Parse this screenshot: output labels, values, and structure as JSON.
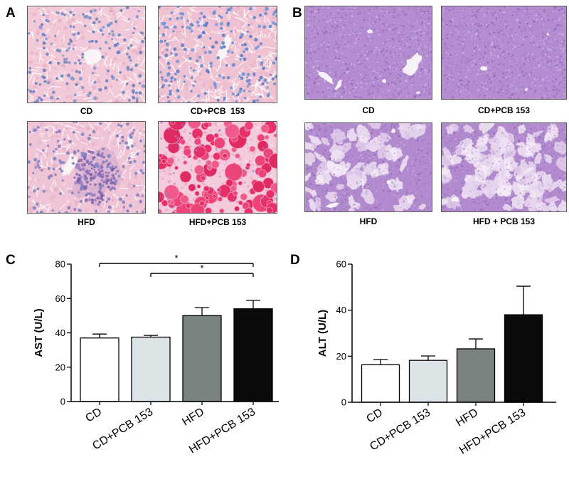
{
  "panel_a": {
    "label": "A",
    "captions": [
      "CD",
      "CD+PCB  153",
      "HFD",
      "HFD+PCB 153"
    ]
  },
  "panel_b": {
    "label": "B",
    "captions": [
      "CD",
      "CD+PCB 153",
      "HFD",
      "HFD + PCB 153"
    ]
  },
  "chart_data": [
    {
      "panel_label": "C",
      "type": "bar",
      "categories": [
        "CD",
        "CD+PCB 153",
        "HFD",
        "HFD+PCB 153"
      ],
      "values": [
        37,
        37.5,
        50,
        54
      ],
      "errors": [
        2.3,
        1,
        4.7,
        4.9
      ],
      "ylabel": "AST (U/L)",
      "ylim": [
        0,
        80
      ],
      "yticks": [
        0,
        20,
        40,
        60,
        80
      ],
      "grid": false,
      "bar_colors": [
        "#ffffff",
        "#dde4e7",
        "#7b8381",
        "#0a0a0a"
      ],
      "significance": [
        {
          "from": 0,
          "to": 3,
          "label": "*"
        },
        {
          "from": 1,
          "to": 3,
          "label": "*"
        }
      ]
    },
    {
      "panel_label": "D",
      "type": "bar",
      "categories": [
        "CD",
        "CD+PCB 153",
        "HFD",
        "HFD+PCB 153"
      ],
      "values": [
        16.3,
        18.2,
        23.2,
        38
      ],
      "errors": [
        2.3,
        1.9,
        4.3,
        12.4
      ],
      "ylabel": "ALT (U/L)",
      "ylim": [
        0,
        60
      ],
      "yticks": [
        0,
        20,
        40,
        60
      ],
      "grid": false,
      "bar_colors": [
        "#ffffff",
        "#dde4e7",
        "#7b8381",
        "#0a0a0a"
      ],
      "significance": []
    }
  ]
}
